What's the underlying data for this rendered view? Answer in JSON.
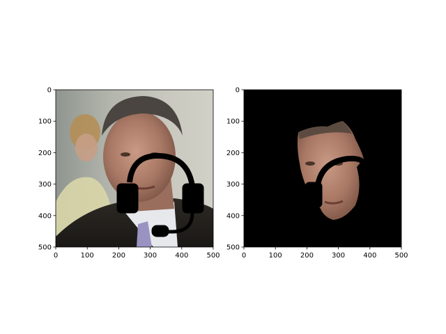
{
  "figure": {
    "background": "#ffffff"
  },
  "chart_data": [
    {
      "type": "image",
      "image_extent": [
        0,
        500,
        500,
        0
      ],
      "xlim": [
        0,
        500
      ],
      "ylim": [
        500,
        0
      ],
      "xticks": [
        0,
        100,
        200,
        300,
        400,
        500
      ],
      "yticks": [
        0,
        100,
        200,
        300,
        400,
        500
      ],
      "xtick_labels": [
        "0",
        "100",
        "200",
        "300",
        "400",
        "500"
      ],
      "ytick_labels": [
        "0",
        "100",
        "200",
        "300",
        "400",
        "500"
      ],
      "xlabel": "",
      "ylabel": "",
      "title": "",
      "grid": false,
      "content": "photo of a man in a dark suit with a headset overlay drawn in black"
    },
    {
      "type": "image",
      "image_extent": [
        0,
        500,
        500,
        0
      ],
      "xlim": [
        0,
        500
      ],
      "ylim": [
        500,
        0
      ],
      "xticks": [
        0,
        100,
        200,
        300,
        400,
        500
      ],
      "yticks": [
        0,
        100,
        200,
        300,
        400,
        500
      ],
      "xtick_labels": [
        "0",
        "100",
        "200",
        "300",
        "400",
        "500"
      ],
      "ytick_labels": [
        "0",
        "100",
        "200",
        "300",
        "400",
        "500"
      ],
      "xlabel": "",
      "ylabel": "",
      "title": "",
      "grid": false,
      "background": "#000000",
      "content": "segmented face region on black background with headset occlusion"
    }
  ]
}
